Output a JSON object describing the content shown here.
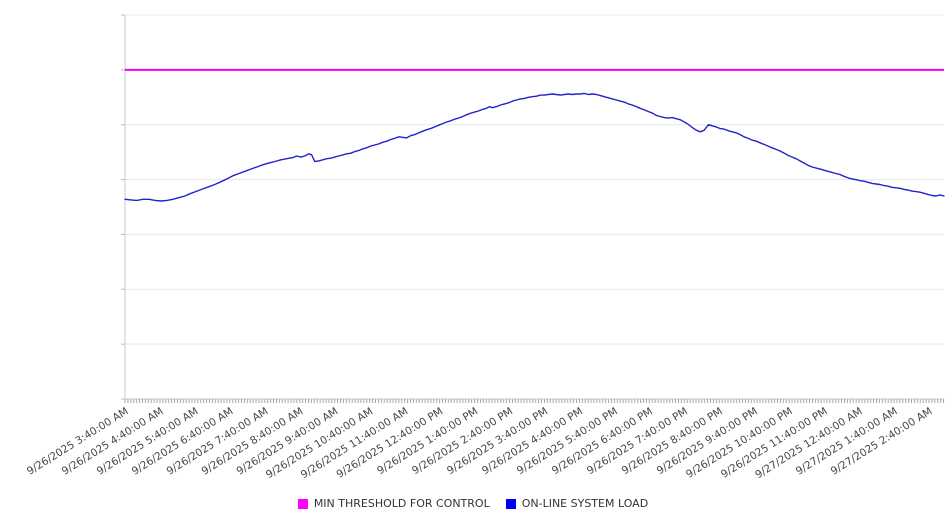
{
  "chart_data": {
    "type": "line",
    "title": "",
    "x_axis": {
      "labels": [
        "9/26/2025 3:40:00 AM",
        "9/26/2025 4:40:00 AM",
        "9/26/2025 5:40:00 AM",
        "9/26/2025 6:40:00 AM",
        "9/26/2025 7:40:00 AM",
        "9/26/2025 8:40:00 AM",
        "9/26/2025 9:40:00 AM",
        "9/26/2025 10:40:00 AM",
        "9/26/2025 11:40:00 AM",
        "9/26/2025 12:40:00 PM",
        "9/26/2025 1:40:00 PM",
        "9/26/2025 2:40:00 PM",
        "9/26/2025 3:40:00 PM",
        "9/26/2025 4:40:00 PM",
        "9/26/2025 5:40:00 PM",
        "9/26/2025 6:40:00 PM",
        "9/26/2025 7:40:00 PM",
        "9/26/2025 8:40:00 PM",
        "9/26/2025 9:40:00 PM",
        "9/26/2025 10:40:00 PM",
        "9/26/2025 11:40:00 PM",
        "9/27/2025 12:40:00 AM",
        "9/27/2025 1:40:00 AM",
        "9/27/2025 2:40:00 AM"
      ],
      "minor_ticks_per_hour": 12,
      "extent_hours": 23.43,
      "label_rotation_deg": -32
    },
    "y_axis": {
      "min": 0,
      "max": 7,
      "gridline_count": 8,
      "labels_visible": false
    },
    "legend_position": "bottom-center",
    "series": [
      {
        "name": "MIN THRESHOLD FOR CONTROL",
        "kind": "threshold",
        "value": 6,
        "color": "#EE00EE",
        "legend_color": "#FF00FF"
      },
      {
        "name": "ON-LINE SYSTEM LOAD",
        "kind": "line",
        "color": "#2323C8",
        "legend_color": "#0000EE",
        "points": [
          [
            0,
            3.64
          ],
          [
            0.17,
            3.63
          ],
          [
            0.34,
            3.62
          ],
          [
            0.51,
            3.64
          ],
          [
            0.69,
            3.64
          ],
          [
            0.86,
            3.62
          ],
          [
            1.03,
            3.61
          ],
          [
            1.2,
            3.62
          ],
          [
            1.37,
            3.64
          ],
          [
            1.54,
            3.67
          ],
          [
            1.71,
            3.7
          ],
          [
            1.89,
            3.75
          ],
          [
            2.06,
            3.79
          ],
          [
            2.23,
            3.83
          ],
          [
            2.4,
            3.87
          ],
          [
            2.57,
            3.91
          ],
          [
            2.74,
            3.96
          ],
          [
            2.91,
            4.01
          ],
          [
            3.09,
            4.07
          ],
          [
            3.26,
            4.11
          ],
          [
            3.43,
            4.15
          ],
          [
            3.6,
            4.19
          ],
          [
            3.77,
            4.23
          ],
          [
            3.94,
            4.27
          ],
          [
            4.11,
            4.3
          ],
          [
            4.29,
            4.33
          ],
          [
            4.46,
            4.36
          ],
          [
            4.63,
            4.38
          ],
          [
            4.8,
            4.4
          ],
          [
            4.91,
            4.43
          ],
          [
            5.03,
            4.41
          ],
          [
            5.14,
            4.43
          ],
          [
            5.26,
            4.47
          ],
          [
            5.34,
            4.45
          ],
          [
            5.43,
            4.33
          ],
          [
            5.54,
            4.34
          ],
          [
            5.66,
            4.36
          ],
          [
            5.77,
            4.38
          ],
          [
            5.89,
            4.39
          ],
          [
            6,
            4.41
          ],
          [
            6.11,
            4.43
          ],
          [
            6.23,
            4.45
          ],
          [
            6.34,
            4.47
          ],
          [
            6.46,
            4.48
          ],
          [
            6.57,
            4.51
          ],
          [
            6.69,
            4.53
          ],
          [
            6.8,
            4.56
          ],
          [
            6.91,
            4.58
          ],
          [
            7.03,
            4.61
          ],
          [
            7.14,
            4.63
          ],
          [
            7.26,
            4.65
          ],
          [
            7.37,
            4.68
          ],
          [
            7.49,
            4.7
          ],
          [
            7.6,
            4.73
          ],
          [
            7.71,
            4.75
          ],
          [
            7.83,
            4.78
          ],
          [
            7.94,
            4.77
          ],
          [
            8.06,
            4.76
          ],
          [
            8.17,
            4.8
          ],
          [
            8.29,
            4.82
          ],
          [
            8.4,
            4.85
          ],
          [
            8.51,
            4.88
          ],
          [
            8.63,
            4.91
          ],
          [
            8.74,
            4.93
          ],
          [
            8.86,
            4.96
          ],
          [
            8.97,
            4.99
          ],
          [
            9.09,
            5.02
          ],
          [
            9.2,
            5.05
          ],
          [
            9.31,
            5.07
          ],
          [
            9.43,
            5.1
          ],
          [
            9.54,
            5.12
          ],
          [
            9.66,
            5.15
          ],
          [
            9.77,
            5.18
          ],
          [
            9.89,
            5.21
          ],
          [
            10,
            5.23
          ],
          [
            10.11,
            5.25
          ],
          [
            10.23,
            5.28
          ],
          [
            10.34,
            5.3
          ],
          [
            10.43,
            5.33
          ],
          [
            10.51,
            5.31
          ],
          [
            10.63,
            5.33
          ],
          [
            10.74,
            5.36
          ],
          [
            10.86,
            5.38
          ],
          [
            10.97,
            5.4
          ],
          [
            11.09,
            5.43
          ],
          [
            11.2,
            5.45
          ],
          [
            11.31,
            5.47
          ],
          [
            11.43,
            5.48
          ],
          [
            11.54,
            5.5
          ],
          [
            11.66,
            5.51
          ],
          [
            11.77,
            5.52
          ],
          [
            11.89,
            5.54
          ],
          [
            12,
            5.54
          ],
          [
            12.11,
            5.55
          ],
          [
            12.23,
            5.56
          ],
          [
            12.34,
            5.55
          ],
          [
            12.46,
            5.54
          ],
          [
            12.57,
            5.55
          ],
          [
            12.69,
            5.56
          ],
          [
            12.8,
            5.55
          ],
          [
            12.91,
            5.56
          ],
          [
            13.03,
            5.56
          ],
          [
            13.14,
            5.57
          ],
          [
            13.26,
            5.55
          ],
          [
            13.37,
            5.56
          ],
          [
            13.49,
            5.55
          ],
          [
            13.6,
            5.53
          ],
          [
            13.71,
            5.51
          ],
          [
            13.83,
            5.49
          ],
          [
            13.94,
            5.47
          ],
          [
            14.06,
            5.45
          ],
          [
            14.17,
            5.43
          ],
          [
            14.29,
            5.41
          ],
          [
            14.4,
            5.38
          ],
          [
            14.51,
            5.36
          ],
          [
            14.63,
            5.33
          ],
          [
            14.74,
            5.3
          ],
          [
            14.86,
            5.27
          ],
          [
            14.97,
            5.24
          ],
          [
            15.09,
            5.21
          ],
          [
            15.2,
            5.17
          ],
          [
            15.31,
            5.15
          ],
          [
            15.43,
            5.13
          ],
          [
            15.54,
            5.12
          ],
          [
            15.66,
            5.13
          ],
          [
            15.77,
            5.11
          ],
          [
            15.89,
            5.09
          ],
          [
            16,
            5.05
          ],
          [
            16.11,
            5.01
          ],
          [
            16.23,
            4.95
          ],
          [
            16.34,
            4.9
          ],
          [
            16.46,
            4.87
          ],
          [
            16.57,
            4.9
          ],
          [
            16.69,
            5
          ],
          [
            16.8,
            4.98
          ],
          [
            16.91,
            4.96
          ],
          [
            17.03,
            4.93
          ],
          [
            17.14,
            4.92
          ],
          [
            17.26,
            4.89
          ],
          [
            17.37,
            4.87
          ],
          [
            17.49,
            4.85
          ],
          [
            17.6,
            4.82
          ],
          [
            17.71,
            4.78
          ],
          [
            17.83,
            4.75
          ],
          [
            17.94,
            4.72
          ],
          [
            18.06,
            4.7
          ],
          [
            18.17,
            4.67
          ],
          [
            18.29,
            4.64
          ],
          [
            18.4,
            4.61
          ],
          [
            18.51,
            4.58
          ],
          [
            18.63,
            4.55
          ],
          [
            18.74,
            4.52
          ],
          [
            18.86,
            4.48
          ],
          [
            18.97,
            4.44
          ],
          [
            19.09,
            4.41
          ],
          [
            19.2,
            4.38
          ],
          [
            19.31,
            4.34
          ],
          [
            19.43,
            4.3
          ],
          [
            19.54,
            4.26
          ],
          [
            19.66,
            4.23
          ],
          [
            19.77,
            4.21
          ],
          [
            19.89,
            4.19
          ],
          [
            20,
            4.17
          ],
          [
            20.11,
            4.15
          ],
          [
            20.23,
            4.13
          ],
          [
            20.34,
            4.11
          ],
          [
            20.46,
            4.09
          ],
          [
            20.57,
            4.06
          ],
          [
            20.69,
            4.03
          ],
          [
            20.8,
            4.01
          ],
          [
            20.91,
            4
          ],
          [
            21.03,
            3.98
          ],
          [
            21.14,
            3.97
          ],
          [
            21.26,
            3.95
          ],
          [
            21.37,
            3.93
          ],
          [
            21.49,
            3.92
          ],
          [
            21.6,
            3.91
          ],
          [
            21.71,
            3.89
          ],
          [
            21.83,
            3.88
          ],
          [
            21.94,
            3.86
          ],
          [
            22.06,
            3.85
          ],
          [
            22.17,
            3.84
          ],
          [
            22.29,
            3.82
          ],
          [
            22.4,
            3.81
          ],
          [
            22.51,
            3.79
          ],
          [
            22.63,
            3.78
          ],
          [
            22.74,
            3.77
          ],
          [
            22.86,
            3.75
          ],
          [
            22.97,
            3.73
          ],
          [
            23.09,
            3.71
          ],
          [
            23.2,
            3.7
          ],
          [
            23.31,
            3.72
          ],
          [
            23.43,
            3.7
          ]
        ]
      }
    ]
  }
}
